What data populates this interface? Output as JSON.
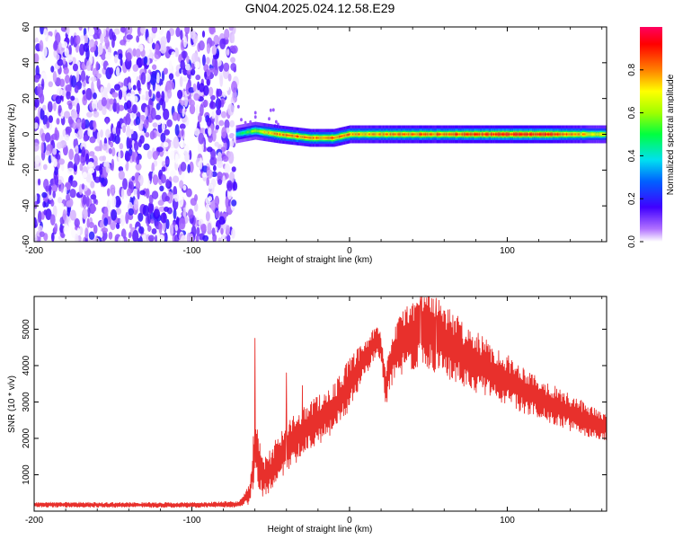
{
  "title": "GN04.2025.024.12.58.E29",
  "chart_data": [
    {
      "type": "heatmap",
      "xlabel": "Height of straight line (km)",
      "ylabel": "Frequency (Hz)",
      "xlim": [
        -200,
        163
      ],
      "ylim": [
        -60,
        60
      ],
      "x_ticks": [
        -200,
        -100,
        0,
        100
      ],
      "y_ticks": [
        -60,
        -40,
        -20,
        0,
        20,
        40,
        60
      ],
      "x_tick_labels": [
        "-200",
        "-100",
        "0",
        "100"
      ],
      "y_tick_labels": [
        "-60",
        "-40",
        "-20",
        "0",
        "20",
        "40",
        "60"
      ],
      "noise_region_x": [
        -200,
        -72
      ],
      "signal_band": {
        "x_start": -72,
        "x_end": 163,
        "center_freq_hz": [
          [
            -72,
            0
          ],
          [
            -60,
            2
          ],
          [
            -45,
            0
          ],
          [
            -25,
            -2
          ],
          [
            -10,
            -2
          ],
          [
            0,
            0
          ],
          [
            20,
            0
          ],
          [
            40,
            0
          ],
          [
            60,
            0
          ],
          [
            80,
            0
          ],
          [
            100,
            0
          ],
          [
            120,
            0
          ],
          [
            140,
            0
          ],
          [
            163,
            0
          ]
        ],
        "peak_amplitude": [
          [
            -72,
            0.45
          ],
          [
            -60,
            0.65
          ],
          [
            -50,
            0.85
          ],
          [
            -40,
            0.9
          ],
          [
            -25,
            0.85
          ],
          [
            -10,
            0.9
          ],
          [
            10,
            0.85
          ],
          [
            30,
            0.88
          ],
          [
            50,
            0.9
          ],
          [
            75,
            0.95
          ],
          [
            100,
            0.97
          ],
          [
            130,
            0.95
          ],
          [
            163,
            0.7
          ]
        ]
      },
      "colorbar": {
        "label": "Normalized spectral amplitude",
        "range": [
          0,
          1
        ],
        "ticks": [
          0.0,
          0.2,
          0.4,
          0.6,
          0.8
        ],
        "tick_labels": [
          "0.0",
          "0.2",
          "0.4",
          "0.6",
          "0.8"
        ]
      }
    },
    {
      "type": "line",
      "xlabel": "Height of straight line (km)",
      "ylabel": "SNR (10 * v/v)",
      "xlim": [
        -200,
        163
      ],
      "ylim": [
        0,
        5900
      ],
      "x_ticks": [
        -200,
        -100,
        0,
        100
      ],
      "y_ticks": [
        1000,
        2000,
        3000,
        4000,
        5000
      ],
      "x_tick_labels": [
        "-200",
        "-100",
        "0",
        "100"
      ],
      "y_tick_labels": [
        "1000",
        "2000",
        "3000",
        "4000",
        "5000"
      ],
      "series": [
        {
          "color": "#e8302c",
          "envelope_x": [
            -200,
            -150,
            -100,
            -70,
            -63,
            -60,
            -55,
            -50,
            -45,
            -40,
            -30,
            -20,
            -10,
            0,
            10,
            17,
            20,
            23,
            25,
            30,
            40,
            50,
            60,
            75,
            100,
            120,
            140,
            163
          ],
          "envelope_mid": [
            180,
            170,
            170,
            190,
            500,
            1800,
            900,
            1100,
            1500,
            1700,
            2200,
            2500,
            2800,
            3500,
            4200,
            4700,
            4500,
            3300,
            3900,
            4500,
            4900,
            5000,
            4700,
            4200,
            3600,
            3100,
            2700,
            2300
          ],
          "envelope_amp": [
            70,
            70,
            70,
            80,
            300,
            900,
            500,
            600,
            700,
            700,
            700,
            700,
            700,
            700,
            500,
            400,
            400,
            500,
            600,
            800,
            1000,
            1100,
            1000,
            900,
            700,
            600,
            500,
            400
          ],
          "spikes": [
            [
              -60,
              4750
            ],
            [
              45,
              5880
            ],
            [
              55,
              5850
            ],
            [
              -40,
              3800
            ],
            [
              -30,
              3450
            ]
          ]
        }
      ]
    }
  ]
}
